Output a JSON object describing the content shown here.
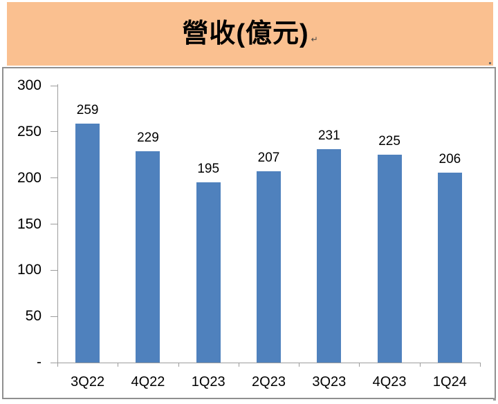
{
  "header": {
    "title": "營收(億元)",
    "paragraph_mark": "↵"
  },
  "colors": {
    "header_bg": "#FAC090",
    "bar": "#4F81BD",
    "frame_border": "#8F8F8F",
    "axis": "#9C9C9C",
    "text": "#000000"
  },
  "chart_data": {
    "type": "bar",
    "title": "營收(億元)",
    "categories": [
      "3Q22",
      "4Q22",
      "1Q23",
      "2Q23",
      "3Q23",
      "4Q23",
      "1Q24"
    ],
    "values": [
      259,
      229,
      195,
      207,
      231,
      225,
      206
    ],
    "data_labels": [
      259,
      229,
      195,
      207,
      231,
      225,
      206
    ],
    "y_ticks": [
      {
        "label": "300",
        "value": 300
      },
      {
        "label": "250",
        "value": 250
      },
      {
        "label": "200",
        "value": 200
      },
      {
        "label": "150",
        "value": 150
      },
      {
        "label": "100",
        "value": 100
      },
      {
        "label": "50",
        "value": 50
      },
      {
        "label": "-",
        "value": 0
      }
    ],
    "ylim": [
      0,
      300
    ],
    "xlabel": "",
    "ylabel": "",
    "grid": false,
    "legend": "none"
  }
}
